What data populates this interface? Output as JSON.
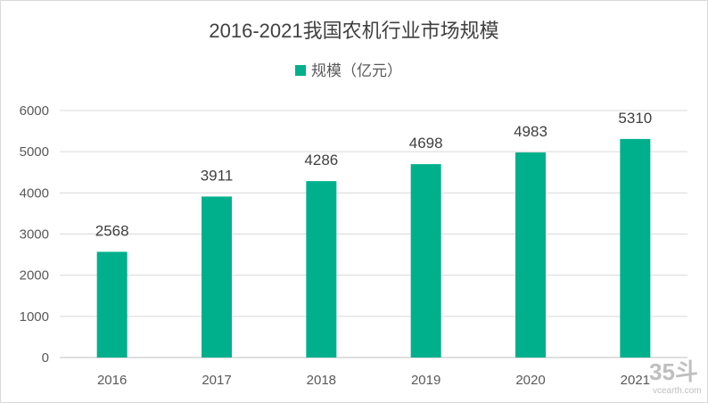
{
  "chart_data": {
    "type": "bar",
    "title": "2016-2021我国农机行业市场规模",
    "categories": [
      "2016",
      "2017",
      "2018",
      "2019",
      "2020",
      "2021"
    ],
    "series": [
      {
        "name": "规模（亿元）",
        "values": [
          2568,
          3911,
          4286,
          4698,
          4983,
          5310
        ],
        "color": "#00b08c"
      }
    ],
    "ylim": [
      0,
      6000
    ],
    "yticks": [
      0,
      1000,
      2000,
      3000,
      4000,
      5000,
      6000
    ],
    "grid": true,
    "legend": "top",
    "data_labels": true
  },
  "watermark": {
    "logo": "35斗",
    "site": "vcearth.com"
  }
}
